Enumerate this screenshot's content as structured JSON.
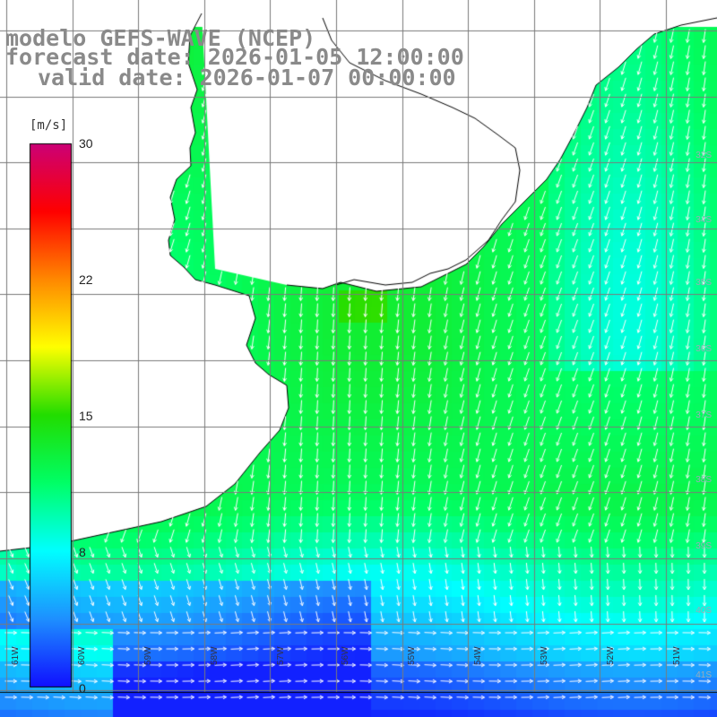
{
  "title": {
    "line1": "modelo GEFS-WAVE (NCEP)",
    "line2": "forecast date: 2026-01-05 12:00:00",
    "line3": "valid date: 2026-01-07 00:00:00"
  },
  "colorbar": {
    "unit": "[m/s]",
    "ticks": [
      "30",
      "22",
      "15",
      "8",
      "0"
    ],
    "tick_values": [
      30,
      22,
      15,
      8,
      0
    ],
    "min": 0,
    "max": 30,
    "colors": [
      "#1010ff",
      "#1e90ff",
      "#00ffff",
      "#00ff66",
      "#22dd00",
      "#ffff00",
      "#ff8800",
      "#ff0000",
      "#cc0077"
    ]
  },
  "lat_labels": [
    "32S",
    "34S",
    "35S",
    "36S",
    "37S",
    "38S",
    "39S",
    "40S",
    "41S"
  ],
  "lon_labels": [
    "61W",
    "60W",
    "59W",
    "58W",
    "57W",
    "56W",
    "55W",
    "54W",
    "53W",
    "52W",
    "51W"
  ],
  "colors": {
    "land": "#ffffff",
    "coast": "#000000",
    "grid": "#7a7a7a",
    "arrow": "#ffffff"
  }
}
